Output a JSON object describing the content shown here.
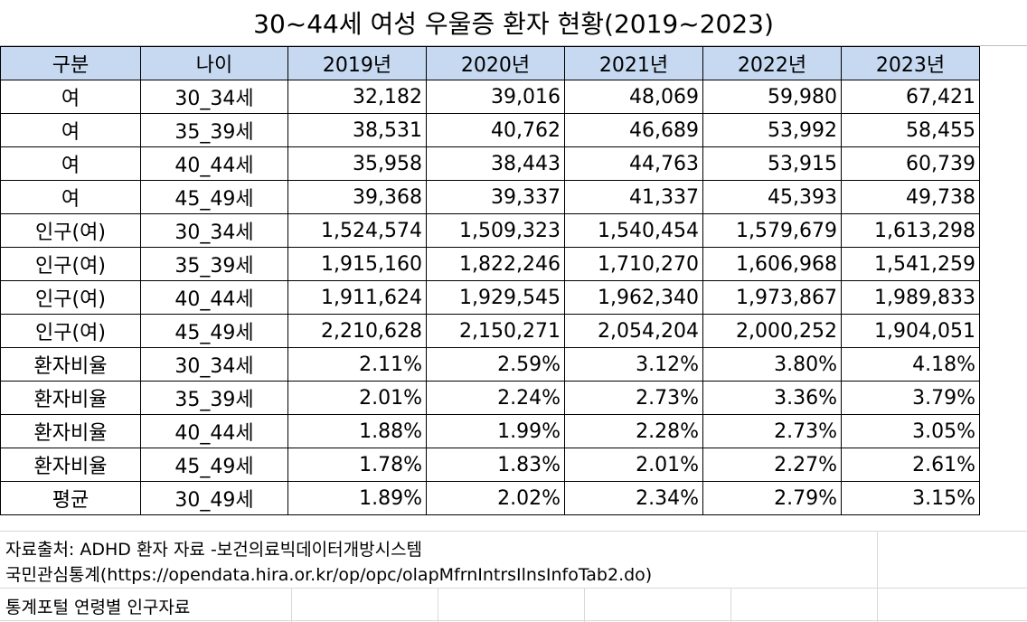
{
  "title": "30~44세 여성 우울증 환자 현황(2019~2023)",
  "table": {
    "headers": [
      "구분",
      "나이",
      "2019년",
      "2020년",
      "2021년",
      "2022년",
      "2023년"
    ],
    "rows": [
      [
        "여",
        "30_34세",
        "32,182",
        "39,016",
        "48,069",
        "59,980",
        "67,421"
      ],
      [
        "여",
        "35_39세",
        "38,531",
        "40,762",
        "46,689",
        "53,992",
        "58,455"
      ],
      [
        "여",
        "40_44세",
        "35,958",
        "38,443",
        "44,763",
        "53,915",
        "60,739"
      ],
      [
        "여",
        "45_49세",
        "39,368",
        "39,337",
        "41,337",
        "45,393",
        "49,738"
      ],
      [
        "인구(여)",
        "30_34세",
        "1,524,574",
        "1,509,323",
        "1,540,454",
        "1,579,679",
        "1,613,298"
      ],
      [
        "인구(여)",
        "35_39세",
        "1,915,160",
        "1,822,246",
        "1,710,270",
        "1,606,968",
        "1,541,259"
      ],
      [
        "인구(여)",
        "40_44세",
        "1,911,624",
        "1,929,545",
        "1,962,340",
        "1,973,867",
        "1,989,833"
      ],
      [
        "인구(여)",
        "45_49세",
        "2,210,628",
        "2,150,271",
        "2,054,204",
        "2,000,252",
        "1,904,051"
      ],
      [
        "환자비율",
        "30_34세",
        "2.11%",
        "2.59%",
        "3.12%",
        "3.80%",
        "4.18%"
      ],
      [
        "환자비율",
        "35_39세",
        "2.01%",
        "2.24%",
        "2.73%",
        "3.36%",
        "3.79%"
      ],
      [
        "환자비율",
        "40_44세",
        "1.88%",
        "1.99%",
        "2.28%",
        "2.73%",
        "3.05%"
      ],
      [
        "환자비율",
        "45_49세",
        "1.78%",
        "1.83%",
        "2.01%",
        "2.27%",
        "2.61%"
      ],
      [
        "평균",
        "30_49세",
        "1.89%",
        "2.02%",
        "2.34%",
        "2.79%",
        "3.15%"
      ]
    ]
  },
  "notes": {
    "source_line1": "자료출처: ADHD 환자 자료 -보건의료빅데이터개방시스템",
    "source_line2": "국민관심통계(https://opendata.hira.or.kr/op/opc/olapMfrnIntrsIlnsInfoTab2.do)",
    "source_line3": "통계포털 연령별 인구자료"
  }
}
